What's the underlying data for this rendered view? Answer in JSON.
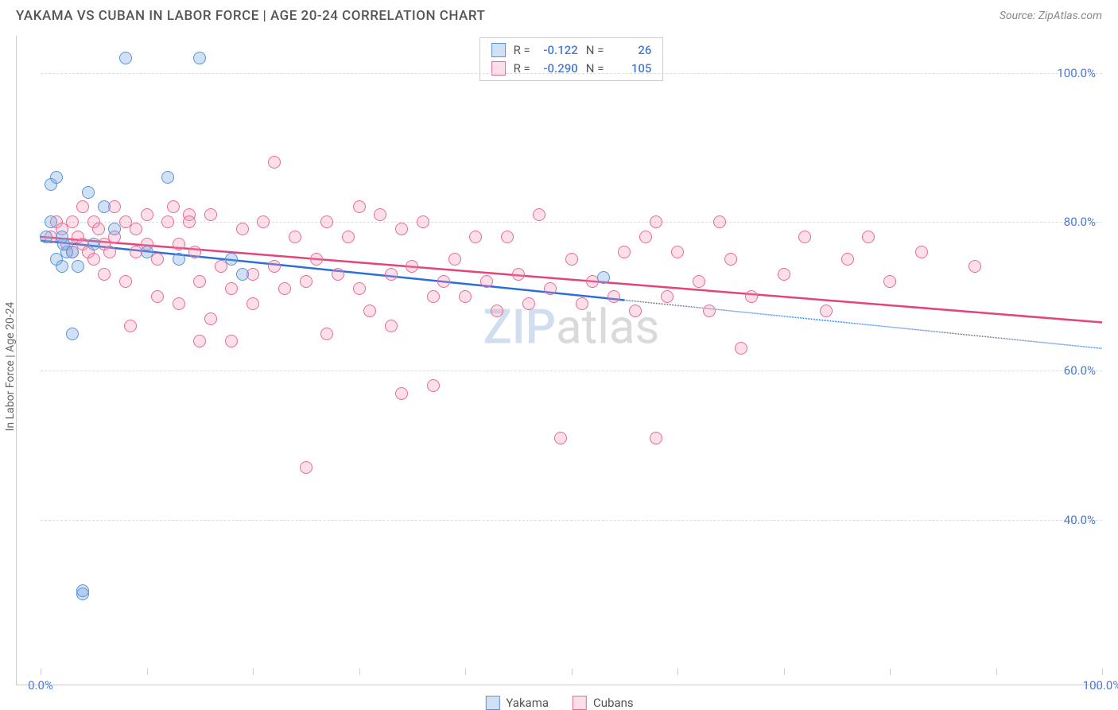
{
  "header": {
    "title": "YAKAMA VS CUBAN IN LABOR FORCE | AGE 20-24 CORRELATION CHART",
    "source_prefix": "Source: ",
    "source_name": "ZipAtlas.com"
  },
  "chart": {
    "type": "scatter",
    "y_axis_label": "In Labor Force | Age 20-24",
    "x_range": [
      0,
      100
    ],
    "y_range": [
      20,
      105
    ],
    "y_ticks": [
      {
        "v": 40,
        "label": "40.0%"
      },
      {
        "v": 60,
        "label": "60.0%"
      },
      {
        "v": 80,
        "label": "80.0%"
      },
      {
        "v": 100,
        "label": "100.0%"
      }
    ],
    "x_tick_positions": [
      0,
      10,
      20,
      30,
      40,
      50,
      60,
      70,
      80,
      90,
      100
    ],
    "x_tick_labels": [
      {
        "v": 0,
        "label": "0.0%"
      },
      {
        "v": 100,
        "label": "100.0%"
      }
    ],
    "grid_color": "#dddddd",
    "background_color": "#ffffff",
    "point_radius": 8,
    "series": [
      {
        "name": "Yakama",
        "fill": "rgba(120,170,230,0.35)",
        "stroke": "#5a93d8",
        "line_color": "#2b6fd8",
        "line_width": 2.5,
        "R": "-0.122",
        "N": "26",
        "trend": {
          "x1": 0,
          "y1": 77.5,
          "x2": 55,
          "y2": 69.5,
          "dash_to_x": 100,
          "dash_to_y": 63
        },
        "points": [
          {
            "x": 0.5,
            "y": 78
          },
          {
            "x": 1,
            "y": 85
          },
          {
            "x": 1.5,
            "y": 86
          },
          {
            "x": 1,
            "y": 80
          },
          {
            "x": 1.5,
            "y": 75
          },
          {
            "x": 2,
            "y": 78
          },
          {
            "x": 2.5,
            "y": 76
          },
          {
            "x": 2,
            "y": 74
          },
          {
            "x": 3,
            "y": 76
          },
          {
            "x": 3,
            "y": 65
          },
          {
            "x": 4,
            "y": 30
          },
          {
            "x": 4,
            "y": 30.5
          },
          {
            "x": 4.5,
            "y": 84
          },
          {
            "x": 5,
            "y": 77
          },
          {
            "x": 6,
            "y": 82
          },
          {
            "x": 7,
            "y": 79
          },
          {
            "x": 8,
            "y": 102
          },
          {
            "x": 10,
            "y": 76
          },
          {
            "x": 12,
            "y": 86
          },
          {
            "x": 13,
            "y": 75
          },
          {
            "x": 15,
            "y": 102
          },
          {
            "x": 18,
            "y": 75
          },
          {
            "x": 19,
            "y": 73
          },
          {
            "x": 3.5,
            "y": 74
          },
          {
            "x": 2.2,
            "y": 77
          },
          {
            "x": 53,
            "y": 72.5
          }
        ]
      },
      {
        "name": "Cubans",
        "fill": "rgba(245,150,180,0.30)",
        "stroke": "#e86b95",
        "line_color": "#e3447a",
        "line_width": 2.5,
        "R": "-0.290",
        "N": "105",
        "trend": {
          "x1": 0,
          "y1": 78,
          "x2": 100,
          "y2": 66.5
        },
        "points": [
          {
            "x": 1,
            "y": 78
          },
          {
            "x": 1.5,
            "y": 80
          },
          {
            "x": 2,
            "y": 79
          },
          {
            "x": 2.5,
            "y": 77
          },
          {
            "x": 3,
            "y": 80
          },
          {
            "x": 3,
            "y": 76
          },
          {
            "x": 3.5,
            "y": 78
          },
          {
            "x": 4,
            "y": 82
          },
          {
            "x": 4,
            "y": 77
          },
          {
            "x": 4.5,
            "y": 76
          },
          {
            "x": 5,
            "y": 80
          },
          {
            "x": 5,
            "y": 75
          },
          {
            "x": 5.5,
            "y": 79
          },
          {
            "x": 6,
            "y": 77
          },
          {
            "x": 6,
            "y": 73
          },
          {
            "x": 6.5,
            "y": 76
          },
          {
            "x": 7,
            "y": 82
          },
          {
            "x": 7,
            "y": 78
          },
          {
            "x": 8,
            "y": 80
          },
          {
            "x": 8,
            "y": 72
          },
          {
            "x": 8.5,
            "y": 66
          },
          {
            "x": 9,
            "y": 79
          },
          {
            "x": 9,
            "y": 76
          },
          {
            "x": 10,
            "y": 81
          },
          {
            "x": 10,
            "y": 77
          },
          {
            "x": 11,
            "y": 70
          },
          {
            "x": 11,
            "y": 75
          },
          {
            "x": 12,
            "y": 80
          },
          {
            "x": 12.5,
            "y": 82
          },
          {
            "x": 13,
            "y": 77
          },
          {
            "x": 13,
            "y": 69
          },
          {
            "x": 14,
            "y": 81
          },
          {
            "x": 14,
            "y": 80
          },
          {
            "x": 14.5,
            "y": 76
          },
          {
            "x": 15,
            "y": 72
          },
          {
            "x": 15,
            "y": 64
          },
          {
            "x": 16,
            "y": 81
          },
          {
            "x": 16,
            "y": 67
          },
          {
            "x": 17,
            "y": 74
          },
          {
            "x": 18,
            "y": 71
          },
          {
            "x": 18,
            "y": 64
          },
          {
            "x": 19,
            "y": 79
          },
          {
            "x": 20,
            "y": 73
          },
          {
            "x": 20,
            "y": 69
          },
          {
            "x": 21,
            "y": 80
          },
          {
            "x": 22,
            "y": 74
          },
          {
            "x": 22,
            "y": 88
          },
          {
            "x": 23,
            "y": 71
          },
          {
            "x": 24,
            "y": 78
          },
          {
            "x": 25,
            "y": 72
          },
          {
            "x": 25,
            "y": 47
          },
          {
            "x": 26,
            "y": 75
          },
          {
            "x": 27,
            "y": 80
          },
          {
            "x": 27,
            "y": 65
          },
          {
            "x": 28,
            "y": 73
          },
          {
            "x": 29,
            "y": 78
          },
          {
            "x": 30,
            "y": 71
          },
          {
            "x": 30,
            "y": 82
          },
          {
            "x": 31,
            "y": 68
          },
          {
            "x": 32,
            "y": 81
          },
          {
            "x": 33,
            "y": 73
          },
          {
            "x": 33,
            "y": 66
          },
          {
            "x": 34,
            "y": 79
          },
          {
            "x": 34,
            "y": 57
          },
          {
            "x": 35,
            "y": 74
          },
          {
            "x": 36,
            "y": 80
          },
          {
            "x": 37,
            "y": 70
          },
          {
            "x": 37,
            "y": 58
          },
          {
            "x": 38,
            "y": 72
          },
          {
            "x": 39,
            "y": 75
          },
          {
            "x": 40,
            "y": 70
          },
          {
            "x": 41,
            "y": 78
          },
          {
            "x": 42,
            "y": 72
          },
          {
            "x": 43,
            "y": 68
          },
          {
            "x": 44,
            "y": 78
          },
          {
            "x": 45,
            "y": 73
          },
          {
            "x": 46,
            "y": 69
          },
          {
            "x": 47,
            "y": 81
          },
          {
            "x": 48,
            "y": 71
          },
          {
            "x": 49,
            "y": 51
          },
          {
            "x": 50,
            "y": 75
          },
          {
            "x": 51,
            "y": 69
          },
          {
            "x": 52,
            "y": 72
          },
          {
            "x": 54,
            "y": 70
          },
          {
            "x": 55,
            "y": 76
          },
          {
            "x": 56,
            "y": 68
          },
          {
            "x": 57,
            "y": 78
          },
          {
            "x": 58,
            "y": 80
          },
          {
            "x": 58,
            "y": 51
          },
          {
            "x": 59,
            "y": 70
          },
          {
            "x": 60,
            "y": 76
          },
          {
            "x": 62,
            "y": 72
          },
          {
            "x": 63,
            "y": 68
          },
          {
            "x": 64,
            "y": 80
          },
          {
            "x": 65,
            "y": 75
          },
          {
            "x": 66,
            "y": 63
          },
          {
            "x": 67,
            "y": 70
          },
          {
            "x": 70,
            "y": 73
          },
          {
            "x": 72,
            "y": 78
          },
          {
            "x": 74,
            "y": 68
          },
          {
            "x": 76,
            "y": 75
          },
          {
            "x": 78,
            "y": 78
          },
          {
            "x": 80,
            "y": 72
          },
          {
            "x": 83,
            "y": 76
          },
          {
            "x": 88,
            "y": 74
          }
        ]
      }
    ],
    "legend": [
      {
        "label": "Yakama",
        "fill": "rgba(120,170,230,0.35)",
        "stroke": "#5a93d8"
      },
      {
        "label": "Cubans",
        "fill": "rgba(245,150,180,0.30)",
        "stroke": "#e86b95"
      }
    ],
    "watermark": {
      "a": "ZIP",
      "b": "atlas"
    }
  }
}
